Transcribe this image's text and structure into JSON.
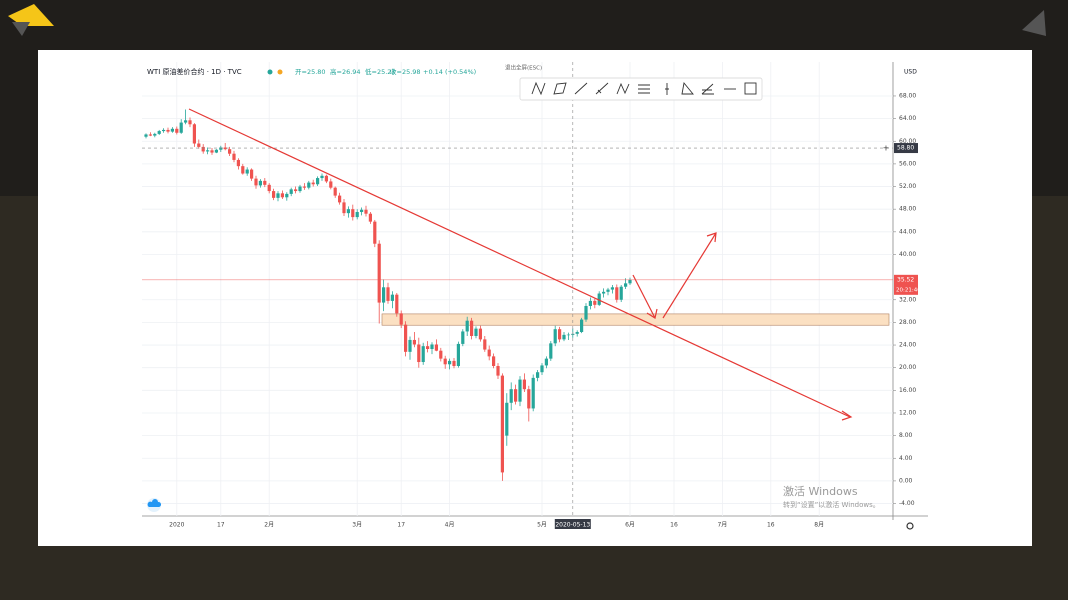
{
  "chart_data": {
    "type": "candlestick",
    "header": {
      "symbol": "WTI 原油差价合约 · 1D · TVC",
      "ohlc": [
        "开=25.80",
        "高=26.94",
        "低=25.27",
        "收=25.98"
      ],
      "change": "+0.14 (+0.54%)"
    },
    "exit_fullscreen": "退出全屏(ESC)",
    "currency": "USD",
    "watermark": [
      "激活 Windows",
      "转到“设置”以激活 Windows。"
    ],
    "up_color": "#26a69a",
    "down_color": "#ef5350",
    "grid": true,
    "ylim": [
      -6.2,
      74
    ],
    "yticks": [
      {
        "value": -4,
        "label": "-4.00"
      },
      {
        "value": 0,
        "label": "0.00"
      },
      {
        "value": 4,
        "label": "4.00"
      },
      {
        "value": 8,
        "label": "8.00"
      },
      {
        "value": 12,
        "label": "12.00"
      },
      {
        "value": 16,
        "label": "16.00"
      },
      {
        "value": 20,
        "label": "20.00"
      },
      {
        "value": 24,
        "label": "24.00"
      },
      {
        "value": 28,
        "label": "28.00"
      },
      {
        "value": 32,
        "label": "32.00"
      },
      {
        "value": 40,
        "label": "40.00"
      },
      {
        "value": 44,
        "label": "44.00"
      },
      {
        "value": 48,
        "label": "48.00"
      },
      {
        "value": 52,
        "label": "52.00"
      },
      {
        "value": 56,
        "label": "56.00"
      },
      {
        "value": 60,
        "label": "60.00"
      },
      {
        "value": 64,
        "label": "64.00"
      },
      {
        "value": 68,
        "label": "68.00"
      }
    ],
    "price_line": {
      "value": 35.52,
      "label": "35.52",
      "countdown": "20:21:46",
      "color": "#ef5350"
    },
    "crosshair": {
      "value": 58.8,
      "label": "58.80"
    },
    "zone": {
      "from": 27.5,
      "to": 29.5,
      "color": "#fbe0c2"
    },
    "categories": [
      null,
      null,
      null,
      null,
      null,
      null,
      null,
      "2020",
      null,
      null,
      null,
      null,
      null,
      null,
      null,
      null,
      null,
      "17",
      null,
      null,
      null,
      null,
      null,
      null,
      null,
      null,
      null,
      null,
      "2月",
      null,
      null,
      null,
      null,
      null,
      null,
      null,
      null,
      null,
      null,
      null,
      null,
      null,
      null,
      null,
      null,
      null,
      null,
      null,
      "3月",
      null,
      null,
      null,
      null,
      null,
      null,
      null,
      null,
      null,
      "17",
      null,
      null,
      null,
      null,
      null,
      null,
      null,
      null,
      null,
      null,
      "4月",
      null,
      null,
      null,
      null,
      null,
      null,
      null,
      null,
      null,
      null,
      null,
      null,
      null,
      null,
      null,
      null,
      null,
      null,
      null,
      null,
      "5月",
      null,
      null,
      null,
      null,
      null,
      null,
      "2020-05-13",
      null,
      null,
      null,
      null,
      null,
      null,
      null,
      null,
      null,
      null,
      null,
      null,
      "6月",
      null,
      null,
      null,
      null,
      null,
      null,
      null,
      null,
      null,
      "16",
      null,
      null,
      null,
      null,
      null,
      null,
      null,
      null,
      null,
      null,
      "7月",
      null,
      null,
      null,
      null,
      null,
      null,
      null,
      null,
      null,
      null,
      "16",
      null,
      null,
      null,
      null,
      null,
      null,
      null,
      null,
      null,
      null,
      "8月"
    ],
    "open": [
      60.8,
      61.2,
      61.0,
      61.3,
      61.8,
      62.0,
      61.7,
      62.2,
      61.5,
      63.3,
      63.7,
      63.0,
      59.6,
      59.0,
      58.2,
      58.4,
      58.0,
      58.5,
      58.9,
      58.6,
      57.8,
      56.7,
      55.6,
      54.3,
      55.0,
      53.4,
      52.2,
      53.0,
      52.3,
      51.2,
      50.0,
      50.8,
      50.1,
      50.7,
      51.5,
      51.2,
      52.0,
      51.8,
      52.7,
      52.4,
      53.5,
      53.9,
      52.9,
      51.8,
      50.4,
      49.2,
      47.3,
      48.0,
      46.6,
      47.5,
      47.9,
      47.2,
      45.8,
      41.9,
      31.5,
      34.2,
      31.8,
      32.9,
      29.6,
      27.6,
      22.8,
      24.9,
      24.1,
      21.0,
      23.8,
      23.3,
      24.1,
      23.0,
      21.6,
      20.6,
      21.2,
      20.3,
      24.2,
      26.4,
      28.3,
      25.6,
      26.9,
      25.0,
      23.2,
      22.0,
      20.3,
      18.6,
      8.0,
      13.8,
      16.2,
      14.0,
      17.9,
      16.2,
      12.8,
      18.2,
      19.2,
      20.4,
      21.6,
      24.3,
      26.8,
      25.0,
      25.8,
      25.8,
      25.98,
      26.3,
      28.5,
      30.9,
      31.8,
      31.1,
      33.1,
      33.4,
      33.8,
      34.2,
      32.0,
      34.3,
      34.9,
      null,
      null,
      null,
      null,
      null,
      null,
      null,
      null,
      null,
      null,
      null,
      null,
      null,
      null,
      null,
      null,
      null,
      null,
      null,
      null,
      null,
      null,
      null,
      null,
      null,
      null,
      null,
      null,
      null,
      null,
      null,
      null,
      null,
      null,
      null,
      null,
      null,
      null,
      null,
      null,
      null,
      null,
      null
    ],
    "high": [
      61.4,
      61.6,
      61.5,
      62.0,
      62.3,
      62.4,
      62.5,
      62.6,
      63.9,
      65.6,
      64.2,
      63.2,
      60.3,
      59.5,
      58.9,
      58.8,
      58.6,
      59.2,
      59.7,
      59.0,
      58.3,
      57.0,
      56.0,
      55.4,
      55.2,
      53.9,
      53.3,
      53.5,
      52.6,
      51.6,
      51.2,
      51.3,
      51.0,
      51.8,
      52.0,
      52.3,
      52.6,
      53.0,
      53.2,
      53.8,
      54.3,
      54.1,
      53.4,
      52.0,
      50.9,
      49.8,
      48.5,
      48.8,
      48.0,
      48.3,
      48.6,
      47.5,
      46.1,
      42.5,
      35.6,
      35.0,
      33.5,
      33.2,
      30.1,
      28.2,
      25.5,
      26.3,
      25.3,
      24.4,
      24.7,
      24.5,
      25.0,
      23.5,
      22.1,
      21.6,
      21.7,
      24.6,
      26.8,
      29.0,
      28.8,
      27.3,
      27.4,
      25.6,
      23.9,
      22.5,
      20.8,
      19.0,
      15.5,
      17.4,
      17.0,
      18.5,
      19.0,
      16.8,
      18.8,
      19.6,
      20.8,
      22.0,
      24.7,
      27.4,
      27.2,
      26.3,
      26.2,
      26.94,
      26.6,
      28.8,
      31.4,
      32.4,
      32.2,
      33.5,
      34.0,
      34.1,
      34.6,
      34.7,
      34.6,
      35.8,
      35.9,
      null,
      null,
      null,
      null,
      null,
      null,
      null,
      null,
      null,
      null,
      null,
      null,
      null,
      null,
      null,
      null,
      null,
      null,
      null,
      null,
      null,
      null,
      null,
      null,
      null,
      null,
      null,
      null,
      null,
      null,
      null,
      null,
      null,
      null,
      null,
      null,
      null,
      null,
      null,
      null,
      null,
      null,
      null
    ],
    "low": [
      60.5,
      60.9,
      60.7,
      61.1,
      61.5,
      61.4,
      61.5,
      61.2,
      61.3,
      63.0,
      62.5,
      59.0,
      58.7,
      57.8,
      57.7,
      57.6,
      57.9,
      58.1,
      58.4,
      57.4,
      56.3,
      55.0,
      54.1,
      53.9,
      53.0,
      51.6,
      51.8,
      51.9,
      50.8,
      49.6,
      49.4,
      49.8,
      49.5,
      50.3,
      50.8,
      50.9,
      51.4,
      51.5,
      52.0,
      52.1,
      53.0,
      52.6,
      51.5,
      50.0,
      48.8,
      46.8,
      46.5,
      46.0,
      46.2,
      46.9,
      46.7,
      45.4,
      41.3,
      27.8,
      30.0,
      31.3,
      30.5,
      29.0,
      27.0,
      22.0,
      21.4,
      23.6,
      20.0,
      20.5,
      22.7,
      22.4,
      22.9,
      21.1,
      19.8,
      19.7,
      19.9,
      20.0,
      23.8,
      25.6,
      25.0,
      25.2,
      24.6,
      22.8,
      21.3,
      19.9,
      18.0,
      0.0,
      6.2,
      12.5,
      13.5,
      13.2,
      15.7,
      10.5,
      12.3,
      17.6,
      18.7,
      19.9,
      21.2,
      23.8,
      24.5,
      24.7,
      24.9,
      25.27,
      25.5,
      26.1,
      28.1,
      30.3,
      30.5,
      30.9,
      32.4,
      32.8,
      33.1,
      31.5,
      31.6,
      33.9,
      34.6,
      null,
      null,
      null,
      null,
      null,
      null,
      null,
      null,
      null,
      null,
      null,
      null,
      null,
      null,
      null,
      null,
      null,
      null,
      null,
      null,
      null,
      null,
      null,
      null,
      null,
      null,
      null,
      null,
      null,
      null,
      null,
      null,
      null,
      null,
      null,
      null,
      null,
      null,
      null,
      null,
      null,
      null,
      null
    ],
    "close": [
      61.2,
      61.0,
      61.3,
      61.8,
      62.0,
      61.7,
      62.2,
      61.5,
      63.3,
      63.7,
      63.0,
      59.6,
      59.0,
      58.2,
      58.4,
      58.0,
      58.5,
      58.9,
      58.6,
      57.8,
      56.7,
      55.6,
      54.3,
      55.0,
      53.4,
      52.2,
      53.0,
      52.3,
      51.2,
      50.0,
      50.8,
      50.1,
      50.7,
      51.5,
      51.2,
      52.0,
      51.8,
      52.7,
      52.4,
      53.5,
      53.9,
      52.9,
      51.8,
      50.4,
      49.2,
      47.3,
      48.0,
      46.6,
      47.5,
      47.9,
      47.2,
      45.8,
      41.9,
      31.5,
      34.2,
      31.8,
      32.9,
      29.6,
      27.6,
      22.8,
      24.9,
      24.1,
      21.0,
      23.8,
      23.3,
      24.1,
      23.0,
      21.6,
      20.6,
      21.2,
      20.3,
      24.2,
      26.4,
      28.3,
      25.6,
      26.9,
      25.0,
      23.2,
      22.0,
      20.3,
      18.6,
      1.5,
      13.8,
      16.2,
      14.0,
      17.9,
      16.2,
      12.8,
      18.2,
      19.2,
      20.4,
      21.6,
      24.3,
      26.8,
      25.0,
      25.8,
      25.84,
      25.98,
      26.3,
      28.5,
      30.9,
      31.8,
      31.1,
      33.1,
      33.4,
      33.8,
      34.2,
      32.0,
      34.3,
      34.9,
      35.52,
      null,
      null,
      null,
      null,
      null,
      null,
      null,
      null,
      null,
      null,
      null,
      null,
      null,
      null,
      null,
      null,
      null,
      null,
      null,
      null,
      null,
      null,
      null,
      null,
      null,
      null,
      null,
      null,
      null,
      null,
      null,
      null,
      null,
      null,
      null,
      null,
      null,
      null,
      null,
      null,
      null,
      null,
      null
    ]
  }
}
